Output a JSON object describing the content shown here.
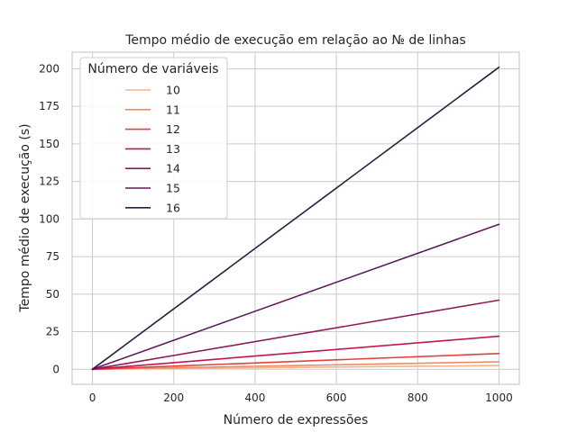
{
  "chart_data": {
    "type": "line",
    "title": "Tempo médio de execução em relação ao № de linhas",
    "xlabel": "Número de expressões",
    "ylabel": "Tempo médio de execução (s)",
    "xlim": [
      -50,
      1050
    ],
    "ylim": [
      -10,
      211
    ],
    "xticks": [
      0,
      200,
      400,
      600,
      800,
      1000
    ],
    "yticks": [
      0,
      25,
      50,
      75,
      100,
      125,
      150,
      175,
      200
    ],
    "grid": true,
    "legend": {
      "title": "Número de variáveis",
      "position": "top-left"
    },
    "x": [
      0,
      1000
    ],
    "series": [
      {
        "name": "10",
        "color": "#f4b48c",
        "values": [
          0,
          2.5
        ]
      },
      {
        "name": "11",
        "color": "#ef8a62",
        "values": [
          0,
          5
        ]
      },
      {
        "name": "12",
        "color": "#e0433f",
        "values": [
          0,
          10.5
        ]
      },
      {
        "name": "13",
        "color": "#c0174f",
        "values": [
          0,
          22
        ]
      },
      {
        "name": "14",
        "color": "#911a5b",
        "values": [
          0,
          46
        ]
      },
      {
        "name": "15",
        "color": "#5f1a5c",
        "values": [
          0,
          96.5
        ]
      },
      {
        "name": "16",
        "color": "#2c1a3f",
        "values": [
          0,
          201
        ]
      }
    ]
  }
}
